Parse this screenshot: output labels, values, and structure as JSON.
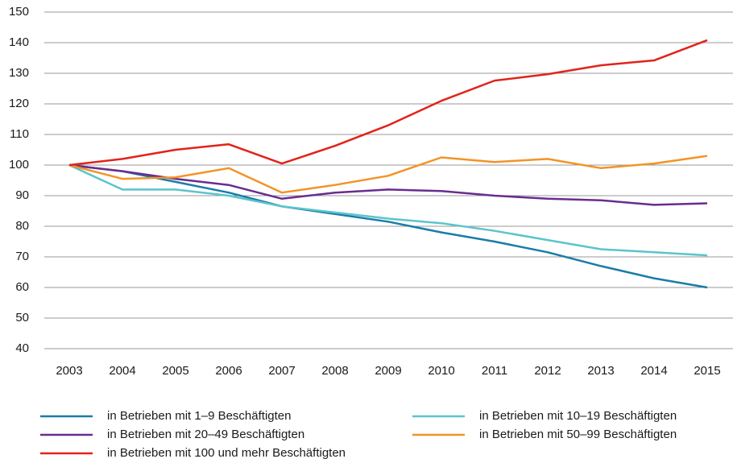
{
  "chart_data": {
    "type": "line",
    "x": [
      2003,
      2004,
      2005,
      2006,
      2007,
      2008,
      2009,
      2010,
      2011,
      2012,
      2013,
      2014,
      2015
    ],
    "xlim": [
      2003,
      2015
    ],
    "ylim": [
      40,
      150
    ],
    "yticks": [
      40,
      50,
      60,
      70,
      80,
      90,
      100,
      110,
      120,
      130,
      140,
      150
    ],
    "grid": true,
    "series": [
      {
        "name": "in Betrieben mit 1–9 Beschäftigten",
        "color": "#1a7ca8",
        "values": [
          100,
          98,
          94.5,
          91,
          86.5,
          84,
          81.5,
          78,
          75,
          71.5,
          67,
          63,
          60
        ]
      },
      {
        "name": "in Betrieben mit 10–19 Beschäftigten",
        "color": "#5bc4cc",
        "values": [
          100,
          92,
          92,
          90,
          86.5,
          84.5,
          82.5,
          81,
          78.5,
          75.5,
          72.5,
          71.5,
          70.5
        ]
      },
      {
        "name": "in Betrieben mit 20–49 Beschäftigten",
        "color": "#6a2c8f",
        "values": [
          100,
          98,
          95.5,
          93.5,
          89,
          91,
          92,
          91.5,
          90,
          89,
          88.5,
          87,
          87.5
        ]
      },
      {
        "name": "in Betrieben mit 50–99 Beschäftigten",
        "color": "#f39325",
        "values": [
          100,
          95.5,
          96,
          99,
          91,
          93.5,
          96.5,
          102.5,
          101,
          102,
          99,
          100.5,
          103
        ]
      },
      {
        "name": "in Betrieben mit 100 und mehr Beschäftigten",
        "color": "#e2231a",
        "values": [
          100,
          102,
          105,
          106.8,
          100.5,
          106.3,
          113,
          121,
          127.6,
          129.7,
          132.6,
          134.2,
          140.8
        ]
      }
    ],
    "legend": "bottom"
  }
}
